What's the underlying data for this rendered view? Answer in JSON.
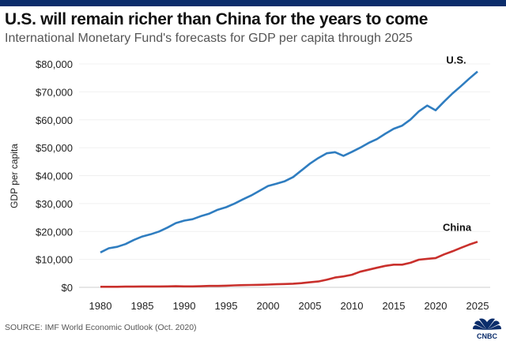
{
  "title": "U.S. will remain richer than China for the years to come",
  "subtitle": "International Monetary Fund's forecasts for GDP per capita through 2025",
  "source": "SOURCE: IMF World Economic Outlook (Oct. 2020)",
  "logo_text": "CNBC",
  "chart_data": {
    "type": "line",
    "title": "U.S. will remain richer than China for the years to come",
    "subtitle": "International Monetary Fund's forecasts for GDP per capita through 2025",
    "xlabel": "",
    "ylabel": "GDP per capita",
    "xlim": [
      1980,
      2025
    ],
    "ylim": [
      0,
      80000
    ],
    "grid": true,
    "xticks": [
      "1980",
      "1985",
      "1990",
      "1995",
      "2000",
      "2005",
      "2010",
      "2015",
      "2020",
      "2025"
    ],
    "yticks": [
      "$0",
      "$10,000",
      "$20,000",
      "$30,000",
      "$40,000",
      "$50,000",
      "$60,000",
      "$70,000",
      "$80,000"
    ],
    "x": [
      1980,
      1981,
      1982,
      1983,
      1984,
      1985,
      1986,
      1987,
      1988,
      1989,
      1990,
      1991,
      1992,
      1993,
      1994,
      1995,
      1996,
      1997,
      1998,
      1999,
      2000,
      2001,
      2002,
      2003,
      2004,
      2005,
      2006,
      2007,
      2008,
      2009,
      2010,
      2011,
      2012,
      2013,
      2014,
      2015,
      2016,
      2017,
      2018,
      2019,
      2020,
      2021,
      2022,
      2023,
      2024,
      2025
    ],
    "series": [
      {
        "name": "U.S.",
        "color": "#2f7dc0",
        "values": [
          12500,
          14000,
          14500,
          15500,
          17000,
          18200,
          19000,
          20000,
          21400,
          23000,
          23900,
          24400,
          25500,
          26400,
          27800,
          28700,
          30000,
          31500,
          32900,
          34600,
          36300,
          37100,
          38000,
          39500,
          41900,
          44300,
          46300,
          48000,
          48400,
          47100,
          48500,
          50000,
          51700,
          53100,
          55000,
          56800,
          57900,
          60100,
          63000,
          65100,
          63400,
          66500,
          69400,
          72000,
          74700,
          77300
        ]
      },
      {
        "name": "China",
        "color": "#c9302c",
        "values": [
          200,
          200,
          200,
          250,
          250,
          300,
          300,
          300,
          350,
          400,
          350,
          350,
          400,
          500,
          500,
          600,
          700,
          800,
          850,
          900,
          1000,
          1100,
          1200,
          1300,
          1500,
          1800,
          2100,
          2700,
          3500,
          3900,
          4500,
          5600,
          6300,
          7000,
          7700,
          8100,
          8100,
          8800,
          9900,
          10200,
          10500,
          11800,
          12900,
          14100,
          15300,
          16300
        ]
      }
    ]
  }
}
